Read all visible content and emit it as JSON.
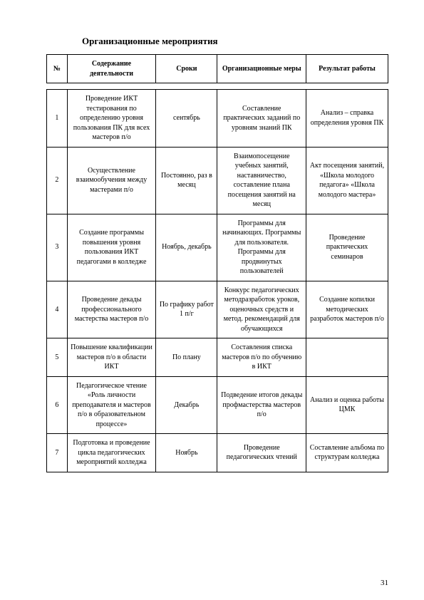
{
  "title": "Организационные мероприятия",
  "page_number": "31",
  "columns": {
    "num": "№",
    "content": "Содержание деятельности",
    "terms": "Сроки",
    "measures": "Организационные меры",
    "result": "Результат работы"
  },
  "rows": [
    {
      "n": "1",
      "c1": "Проведение ИКТ тестирования по определению уровня пользования ПК для всех мастеров п/о",
      "c2": "сентябрь",
      "c3": "Составление практических заданий по уровням знаний ПК",
      "c4": "Анализ – справка определения уровня ПК"
    },
    {
      "n": "2",
      "c1": "Осуществление взаимообучения между мастерами п/о",
      "c2": "Постоянно, раз в месяц",
      "c3": "Взаимопосещение учебных занятий, наставничество, составление плана посещения занятий на месяц",
      "c4": "Акт посещения занятий, «Школа молодого педагога» «Школа молодого мастера»"
    },
    {
      "n": "3",
      "c1": "Создание программы повышения уровня пользования ИКТ педагогами в колледже",
      "c2": "Ноябрь, декабрь",
      "c3": "Программы для начинающих. Программы для пользователя. Программы для продвинутых пользователей",
      "c4": "Проведение практических семинаров"
    },
    {
      "n": "4",
      "c1": "Проведение декады профессионального мастерства мастеров п/о",
      "c2": "По графику работ 1 п/г",
      "c3": "Конкурс педагогических методразработок уроков, оценочных средств и метод. рекомендаций для обучающихся",
      "c4": "Создание копилки методических разработок мастеров п/о"
    },
    {
      "n": "5",
      "c1": "Повышение квалификации мастеров п/о в области ИКТ",
      "c2": "По плану",
      "c3": "Составления списка мастеров п/о по обучению в ИКТ",
      "c4": ""
    },
    {
      "n": "6",
      "c1": "Педагогическое чтение «Роль личности преподавателя и мастеров п/о в образовательном процессе»",
      "c2": "Декабрь",
      "c3": "Подведение итогов декады профмастерства мастеров п/о",
      "c4": "Анализ и оценка работы ЦМК"
    },
    {
      "n": "7",
      "c1": "Подготовка и проведение цикла педагогических мероприятий колледжа",
      "c2": "Ноябрь",
      "c3": "Проведение педагогических чтений",
      "c4": "Составление альбома по структурам колледжа"
    }
  ]
}
